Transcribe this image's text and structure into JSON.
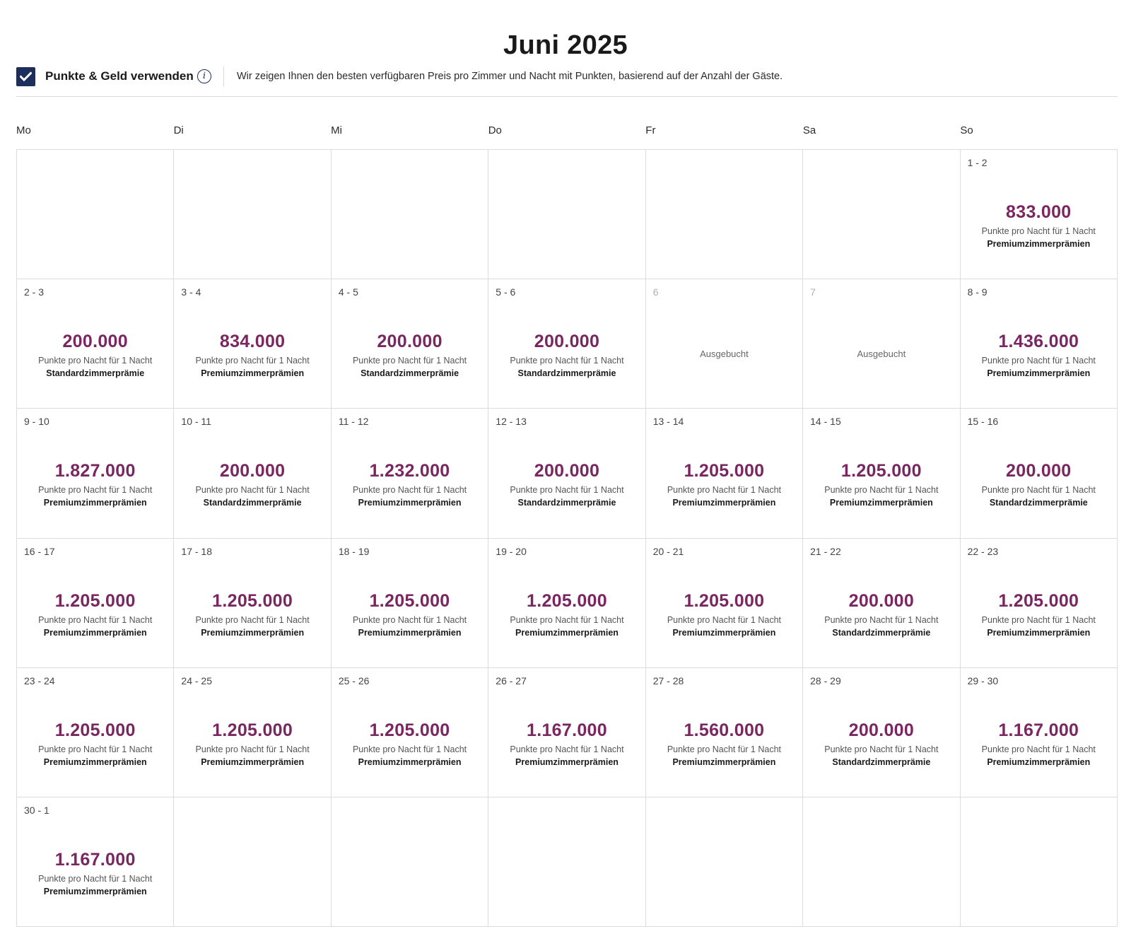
{
  "title": "Juni 2025",
  "toggle": {
    "checked": true,
    "label": "Punkte & Geld verwenden",
    "info_icon": "info-icon",
    "description": "Wir zeigen Ihnen den besten verfügbaren Preis pro Zimmer und Nacht mit Punkten, basierend auf der Anzahl der Gäste."
  },
  "colors": {
    "price": "#7a2660",
    "checkbox": "#1c2e5c",
    "border": "#dcdcdc"
  },
  "weekdays": [
    "Mo",
    "Di",
    "Mi",
    "Do",
    "Fr",
    "Sa",
    "So"
  ],
  "unit_label": "Punkte pro Nacht für 1 Nacht",
  "booked_label": "Ausgebucht",
  "cells": [
    null,
    null,
    null,
    null,
    null,
    null,
    {
      "date": "1 - 2",
      "price": "833.000",
      "type": "Premiumzimmerprämien"
    },
    {
      "date": "2 - 3",
      "price": "200.000",
      "type": "Standardzimmerprämie"
    },
    {
      "date": "3 - 4",
      "price": "834.000",
      "type": "Premiumzimmerprämien"
    },
    {
      "date": "4 - 5",
      "price": "200.000",
      "type": "Standardzimmerprämie"
    },
    {
      "date": "5 - 6",
      "price": "200.000",
      "type": "Standardzimmerprämie"
    },
    {
      "date": "6",
      "booked": true
    },
    {
      "date": "7",
      "booked": true
    },
    {
      "date": "8 - 9",
      "price": "1.436.000",
      "type": "Premiumzimmerprämien"
    },
    {
      "date": "9 - 10",
      "price": "1.827.000",
      "type": "Premiumzimmerprämien"
    },
    {
      "date": "10 - 11",
      "price": "200.000",
      "type": "Standardzimmerprämie"
    },
    {
      "date": "11 - 12",
      "price": "1.232.000",
      "type": "Premiumzimmerprämien"
    },
    {
      "date": "12 - 13",
      "price": "200.000",
      "type": "Standardzimmerprämie"
    },
    {
      "date": "13 - 14",
      "price": "1.205.000",
      "type": "Premiumzimmerprämien"
    },
    {
      "date": "14 - 15",
      "price": "1.205.000",
      "type": "Premiumzimmerprämien"
    },
    {
      "date": "15 - 16",
      "price": "200.000",
      "type": "Standardzimmerprämie"
    },
    {
      "date": "16 - 17",
      "price": "1.205.000",
      "type": "Premiumzimmerprämien"
    },
    {
      "date": "17 - 18",
      "price": "1.205.000",
      "type": "Premiumzimmerprämien"
    },
    {
      "date": "18 - 19",
      "price": "1.205.000",
      "type": "Premiumzimmerprämien"
    },
    {
      "date": "19 - 20",
      "price": "1.205.000",
      "type": "Premiumzimmerprämien"
    },
    {
      "date": "20 - 21",
      "price": "1.205.000",
      "type": "Premiumzimmerprämien"
    },
    {
      "date": "21 - 22",
      "price": "200.000",
      "type": "Standardzimmerprämie"
    },
    {
      "date": "22 - 23",
      "price": "1.205.000",
      "type": "Premiumzimmerprämien"
    },
    {
      "date": "23 - 24",
      "price": "1.205.000",
      "type": "Premiumzimmerprämien"
    },
    {
      "date": "24 - 25",
      "price": "1.205.000",
      "type": "Premiumzimmerprämien"
    },
    {
      "date": "25 - 26",
      "price": "1.205.000",
      "type": "Premiumzimmerprämien"
    },
    {
      "date": "26 - 27",
      "price": "1.167.000",
      "type": "Premiumzimmerprämien"
    },
    {
      "date": "27 - 28",
      "price": "1.560.000",
      "type": "Premiumzimmerprämien"
    },
    {
      "date": "28 - 29",
      "price": "200.000",
      "type": "Standardzimmerprämie"
    },
    {
      "date": "29 - 30",
      "price": "1.167.000",
      "type": "Premiumzimmerprämien"
    },
    {
      "date": "30 - 1",
      "price": "1.167.000",
      "type": "Premiumzimmerprämien"
    },
    null,
    null,
    null,
    null,
    null,
    null
  ]
}
